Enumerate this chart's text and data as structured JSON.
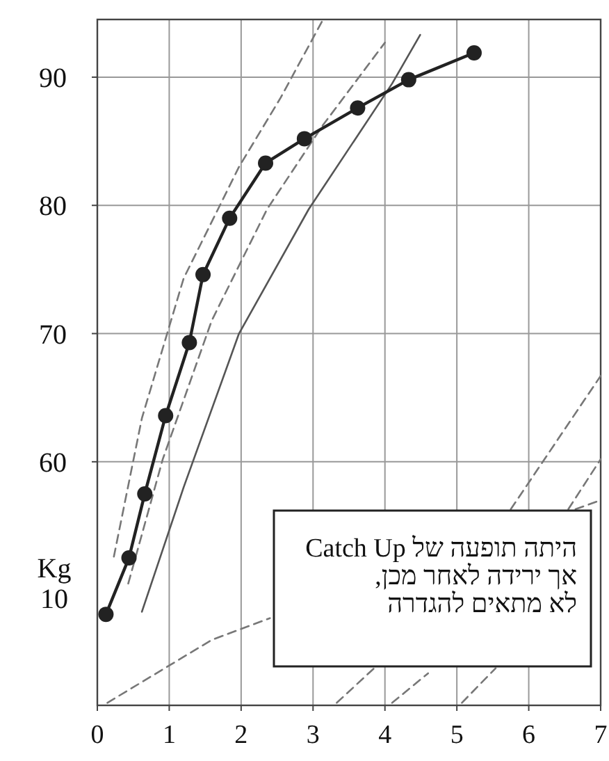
{
  "chart_data": {
    "type": "line",
    "xlim": [
      0,
      7
    ],
    "xticks": [
      0,
      1,
      2,
      3,
      4,
      5,
      6,
      7
    ],
    "ylim": [
      41,
      94.5
    ],
    "yticks": [
      60,
      70,
      80,
      90
    ],
    "grid": true,
    "series": [
      {
        "color": "#222222",
        "marker": "circle",
        "line_style": "solid",
        "x": [
          0.12,
          0.44,
          0.66,
          0.95,
          1.28,
          1.47,
          1.84,
          2.34,
          2.88,
          3.62,
          4.33,
          5.24
        ],
        "values": [
          48.1,
          52.5,
          57.5,
          63.6,
          69.3,
          74.6,
          79.0,
          83.3,
          85.2,
          87.6,
          89.8,
          91.9
        ]
      },
      {
        "color": "#777777",
        "marker": "none",
        "line_style": "dashed",
        "x": [
          0.23,
          0.62,
          1.2,
          1.97,
          2.55,
          3.13
        ],
        "values": [
          52.6,
          63.4,
          74.3,
          83.0,
          88.4,
          94.4
        ]
      },
      {
        "color": "#777777",
        "marker": "none",
        "line_style": "dashed",
        "x": [
          0.43,
          0.91,
          1.59,
          2.36,
          3.13,
          4.0
        ],
        "values": [
          50.5,
          60.2,
          71.0,
          79.7,
          86.2,
          92.7
        ]
      },
      {
        "color": "#555555",
        "marker": "none",
        "line_style": "solid",
        "x": [
          0.62,
          1.2,
          1.97,
          2.94,
          4.1,
          4.49
        ],
        "values": [
          48.3,
          58.0,
          70.0,
          79.7,
          89.5,
          93.3
        ]
      },
      {
        "color": "#777777",
        "marker": "none",
        "line_style": "dashed",
        "x": [
          3.33,
          3.85
        ],
        "values": [
          41.2,
          43.9
        ]
      },
      {
        "color": "#777777",
        "marker": "none",
        "line_style": "dashed",
        "x": [
          5.75,
          7.0
        ],
        "values": [
          56.3,
          66.7
        ]
      },
      {
        "color": "#777777",
        "marker": "none",
        "line_style": "dashed",
        "x": [
          4.1,
          4.6
        ],
        "values": [
          41.2,
          43.5
        ]
      },
      {
        "color": "#777777",
        "marker": "none",
        "line_style": "dashed",
        "x": [
          6.55,
          7.0
        ],
        "values": [
          56.3,
          60.2
        ]
      },
      {
        "color": "#777777",
        "marker": "none",
        "line_style": "dashed",
        "x": [
          5.07,
          5.54
        ],
        "values": [
          41.2,
          43.9
        ]
      },
      {
        "color": "#777777",
        "marker": "none",
        "line_style": "dashed",
        "x": [
          0.14,
          1.59,
          2.4
        ],
        "values": [
          41.2,
          46.1,
          47.8
        ]
      },
      {
        "color": "#777777",
        "marker": "none",
        "line_style": "dashed",
        "x": [
          6.65,
          7.0
        ],
        "values": [
          56.3,
          57.0
        ]
      }
    ],
    "annotations": [
      "Kg\n10",
      "היתה תופעה של Catch Up\nאך ירידה לאחר מכן,\nלא מתאים להגדרה"
    ]
  }
}
